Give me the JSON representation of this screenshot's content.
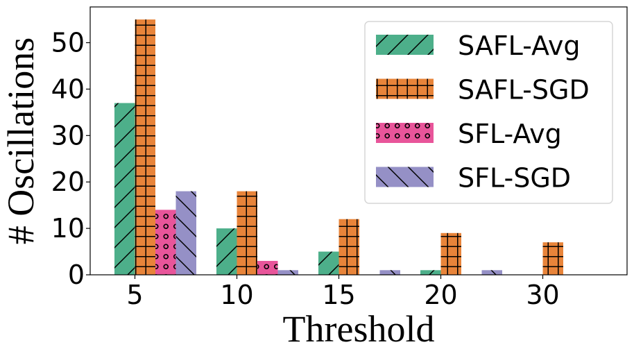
{
  "chart_data": {
    "type": "bar",
    "categories": [
      "5",
      "10",
      "15",
      "20",
      "30"
    ],
    "series": [
      {
        "name": "SAFL-Avg",
        "values": [
          37,
          10,
          5,
          1,
          0
        ],
        "color": "#4daf8a",
        "pattern": "diagonal-forward"
      },
      {
        "name": "SAFL-SGD",
        "values": [
          55,
          18,
          12,
          9,
          7
        ],
        "color": "#e8843a",
        "pattern": "grid"
      },
      {
        "name": "SFL-Avg",
        "values": [
          14,
          3,
          0,
          0,
          0
        ],
        "color": "#e8559a",
        "pattern": "circles"
      },
      {
        "name": "SFL-SGD",
        "values": [
          18,
          1,
          1,
          1,
          0
        ],
        "color": "#9590c6",
        "pattern": "diagonal-back"
      }
    ],
    "xlabel": "Threshold",
    "ylabel": "# Oscillations",
    "ylim": [
      0,
      57.7
    ],
    "yticks": [
      0,
      10,
      20,
      30,
      40,
      50
    ],
    "grid": false,
    "legend_position": "top-right"
  }
}
